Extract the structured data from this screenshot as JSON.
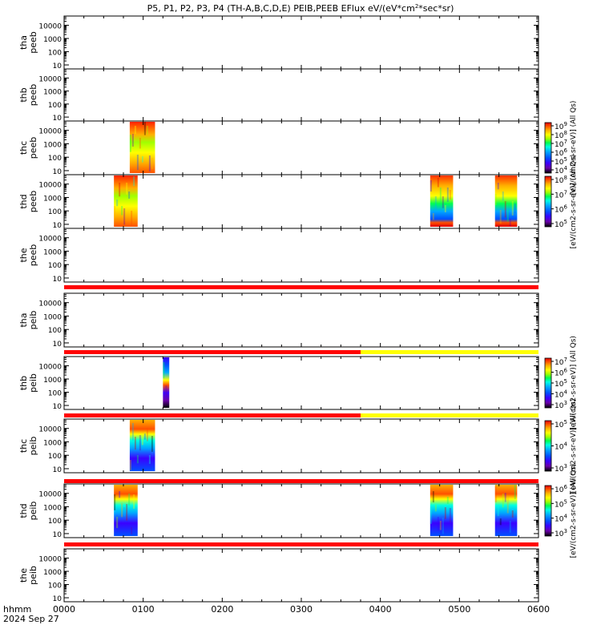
{
  "chart_data": {
    "type": "heatmap",
    "title_parts": {
      "pre": "P5, P1, P2, P3, P4 (TH-A,B,C,D,E) PEIB,PEEB EFlux eV/(eV*cm",
      "sup": "2",
      "post": "*sec*sr)"
    },
    "x_axis": {
      "range_hours": [
        0,
        6
      ],
      "tick_labels": [
        "0000",
        "0100",
        "0200",
        "0300",
        "0400",
        "0500",
        "0600"
      ],
      "label": "hhmm",
      "date": "2024 Sep 27"
    },
    "y_tick_labels": [
      "10",
      "100",
      "1000",
      "10000"
    ],
    "palette": [
      "#000000",
      "#6a00a8",
      "#3a00ff",
      "#0050ff",
      "#00a8ff",
      "#00ffe0",
      "#00ff50",
      "#a0ff00",
      "#ffff00",
      "#ffb000",
      "#ff5000",
      "#e00000"
    ],
    "panels": [
      {
        "label_top": "tha",
        "label_bottom": "peeb",
        "blocks": []
      },
      {
        "label_top": "thb",
        "label_bottom": "peeb",
        "blocks": []
      },
      {
        "label_top": "thc",
        "label_bottom": "peeb",
        "blocks": [
          {
            "t0": 0.83,
            "t1": 1.15,
            "style": "warm"
          }
        ]
      },
      {
        "label_top": "thd",
        "label_bottom": "peeb",
        "blocks": [
          {
            "t0": 0.63,
            "t1": 0.93,
            "style": "warm"
          },
          {
            "t0": 4.63,
            "t1": 4.92,
            "style": "cool"
          },
          {
            "t0": 5.45,
            "t1": 5.73,
            "style": "cool"
          }
        ]
      },
      {
        "label_top": "the",
        "label_bottom": "peeb",
        "blocks": [],
        "bar": [
          {
            "t0": 0,
            "t1": 6,
            "color": "red"
          }
        ]
      },
      {
        "label_top": "tha",
        "label_bottom": "peib",
        "blocks": [],
        "bar": [
          {
            "t0": 0,
            "t1": 3.75,
            "color": "red"
          },
          {
            "t0": 3.75,
            "t1": 6,
            "color": "yellow"
          }
        ]
      },
      {
        "label_top": "thb",
        "label_bottom": "peib",
        "blocks": [
          {
            "t0": 1.25,
            "t1": 1.33,
            "style": "stripe"
          }
        ],
        "bar": [
          {
            "t0": 0,
            "t1": 3.75,
            "color": "red"
          },
          {
            "t0": 3.75,
            "t1": 6,
            "color": "yellow"
          }
        ]
      },
      {
        "label_top": "thc",
        "label_bottom": "peib",
        "blocks": [
          {
            "t0": 0.83,
            "t1": 1.15,
            "style": "ion"
          }
        ],
        "bar": [
          {
            "t0": 0,
            "t1": 6,
            "color": "red"
          }
        ]
      },
      {
        "label_top": "thd",
        "label_bottom": "peib",
        "blocks": [
          {
            "t0": 0.63,
            "t1": 0.93,
            "style": "ion"
          },
          {
            "t0": 4.63,
            "t1": 4.92,
            "style": "ion"
          },
          {
            "t0": 5.45,
            "t1": 5.73,
            "style": "ion"
          }
        ],
        "bar": [
          {
            "t0": 0,
            "t1": 6,
            "color": "red"
          }
        ]
      },
      {
        "label_top": "the",
        "label_bottom": "peib",
        "blocks": []
      }
    ],
    "colorbars": [
      {
        "tick_exponents": [
          "9",
          "8",
          "7",
          "6",
          "5",
          "4"
        ],
        "label": "[eV/(cm2-s-sr-eV)] (All Qs)"
      },
      {
        "tick_exponents": [
          "8",
          "7",
          "6",
          "5"
        ],
        "label": "[eV/(cm2-s-sr-eV)] (All Qs)"
      },
      {
        "tick_exponents": [
          "7",
          "6",
          "5",
          "4",
          "3"
        ],
        "label": "[eV/(cm2-s-sr-eV)] (All Qs)"
      },
      {
        "tick_exponents": [
          "5",
          "4",
          "3"
        ],
        "label": "[eV/(cm2-s-sr-eV)] (All Qs)"
      },
      {
        "tick_exponents": [
          "6",
          "5",
          "4",
          "3"
        ],
        "label": "[eV/(cm2-s-sr-eV)] (All Qs)"
      }
    ],
    "bar_colors": {
      "red": "#ff0000",
      "yellow": "#ffff00"
    }
  }
}
